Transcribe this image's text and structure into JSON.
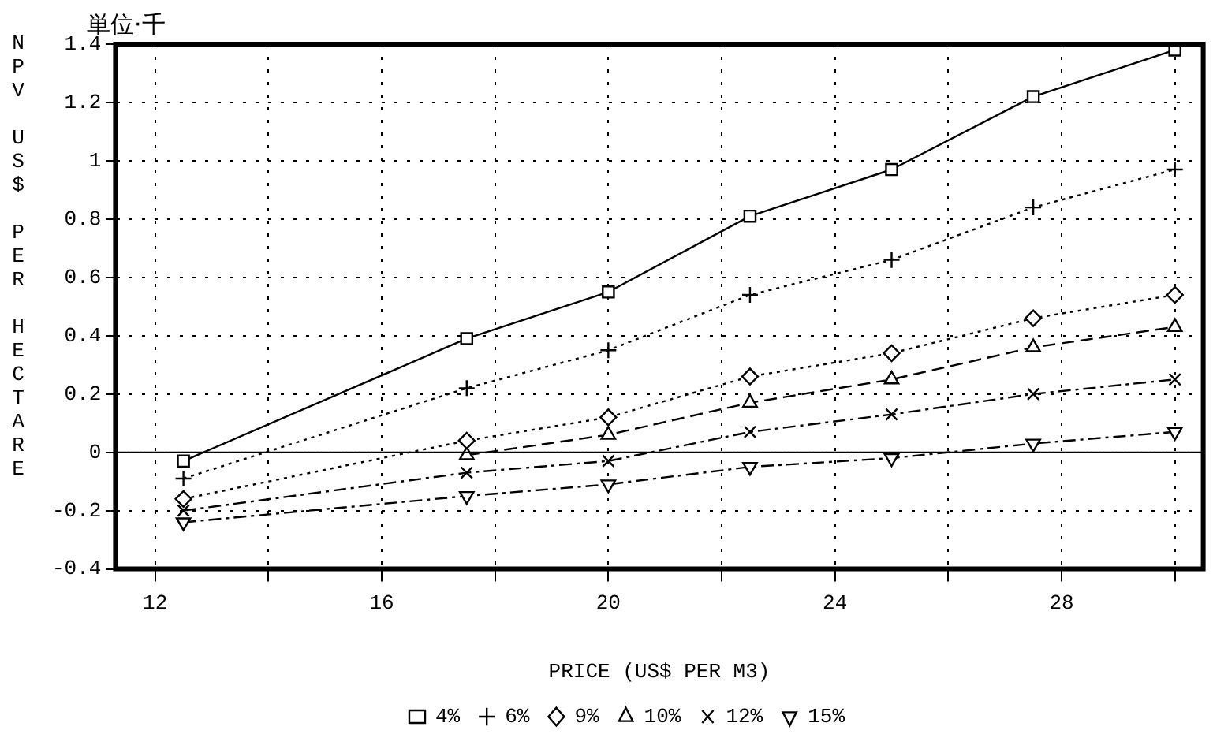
{
  "chart_data": {
    "type": "line",
    "xlabel": "PRICE (US$ PER M3)",
    "ylabel": "NPV US$ PER HECTARE",
    "annotations": [
      "単位·千"
    ],
    "x": [
      12.5,
      17.5,
      20,
      22.5,
      25,
      27.5,
      30
    ],
    "series": [
      {
        "name": "4%",
        "color": "#000000",
        "marker": "square",
        "line_style": "solid",
        "values": [
          -0.03,
          0.39,
          0.55,
          0.81,
          0.97,
          1.22,
          1.38
        ]
      },
      {
        "name": "6%",
        "color": "#000000",
        "marker": "cross",
        "line_style": "dotted",
        "values": [
          -0.09,
          0.22,
          0.35,
          0.54,
          0.66,
          0.84,
          0.97
        ]
      },
      {
        "name": "9%",
        "color": "#000000",
        "marker": "diamond",
        "line_style": "dotted",
        "values": [
          -0.16,
          0.04,
          0.12,
          0.26,
          0.34,
          0.46,
          0.54
        ]
      },
      {
        "name": "10%",
        "color": "#000000",
        "marker": "triangle",
        "line_style": "dashed",
        "values": [
          null,
          -0.01,
          0.06,
          0.17,
          0.25,
          0.36,
          0.43
        ]
      },
      {
        "name": "12%",
        "color": "#000000",
        "marker": "x",
        "line_style": "dashdot",
        "values": [
          -0.2,
          -0.07,
          -0.03,
          0.07,
          0.13,
          0.2,
          0.25
        ]
      },
      {
        "name": "15%",
        "color": "#000000",
        "marker": "triangle-down",
        "line_style": "dashdot",
        "values": [
          -0.24,
          -0.15,
          -0.11,
          -0.05,
          -0.02,
          0.03,
          0.07
        ]
      }
    ],
    "xlim": [
      11.3,
      30.5
    ],
    "xticks": [
      12,
      {
        "value": 14,
        "label": null
      },
      16,
      {
        "value": 18,
        "label": null
      },
      20,
      {
        "value": 22,
        "label": null
      },
      24,
      {
        "value": 26,
        "label": null
      },
      28,
      {
        "value": 30,
        "label": null
      }
    ],
    "ylim": [
      -0.4,
      1.4
    ],
    "yticks": [
      -0.4,
      -0.2,
      0,
      0.2,
      0.4,
      0.6,
      0.8,
      1,
      1.2,
      1.4
    ],
    "ref_lines": [
      {
        "axis": "y",
        "value": 0,
        "color": "#000000"
      }
    ],
    "grid": true,
    "legend": "bottom"
  }
}
